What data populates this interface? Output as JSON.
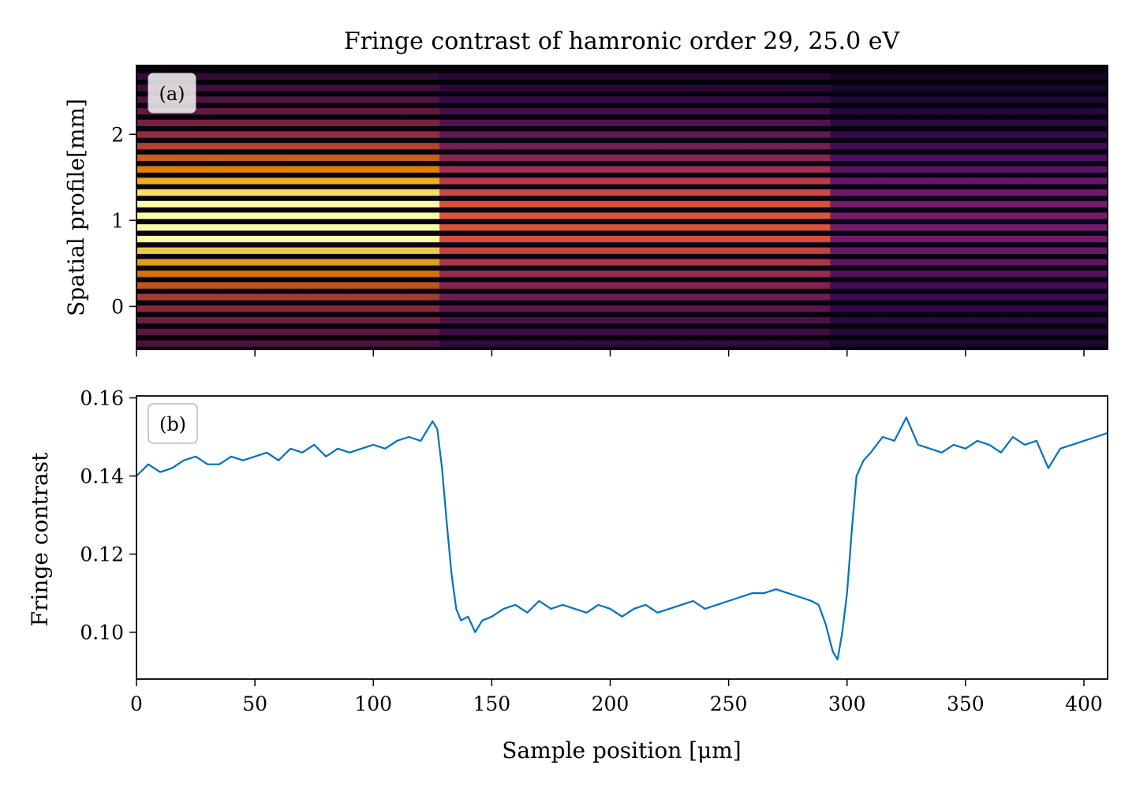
{
  "chart_data": [
    {
      "panel": "(a)",
      "type": "heatmap",
      "title": "Fringe contrast of hamronic order 29, 25.0 eV",
      "ylabel": "Spatial profile[mm]",
      "xlabel": "",
      "xlim": [
        0,
        410
      ],
      "ylim": [
        -0.5,
        2.8
      ],
      "yticks": [
        0,
        1,
        2
      ],
      "xticks": [
        0,
        50,
        100,
        150,
        200,
        250,
        300,
        350,
        400
      ],
      "colormap": "inferno",
      "fringe_period_mm": 0.135,
      "regions": [
        {
          "x_range": [
            0,
            128
          ],
          "relative_intensity": 0.95
        },
        {
          "x_range": [
            128,
            293
          ],
          "relative_intensity": 0.62
        },
        {
          "x_range": [
            293,
            410
          ],
          "relative_intensity": 0.32
        }
      ],
      "beam_center_mm": 1.0,
      "grid": false,
      "legend": "none"
    },
    {
      "panel": "(b)",
      "type": "line",
      "xlabel": "Sample position [μm]",
      "ylabel": "Fringe contrast",
      "xlim": [
        0,
        410
      ],
      "ylim": [
        0.088,
        0.1605
      ],
      "yticks": [
        0.1,
        0.12,
        0.14,
        0.16
      ],
      "ytick_labels": [
        "0.10",
        "0.12",
        "0.14",
        "0.16"
      ],
      "xticks": [
        0,
        50,
        100,
        150,
        200,
        250,
        300,
        350,
        400
      ],
      "color": "#0072bd",
      "grid": false,
      "legend": "none",
      "series": [
        {
          "x": [
            0,
            5,
            10,
            15,
            20,
            25,
            30,
            35,
            40,
            45,
            50,
            55,
            60,
            65,
            70,
            75,
            80,
            85,
            90,
            95,
            100,
            105,
            110,
            115,
            120,
            125,
            127,
            129,
            131,
            133,
            135,
            137,
            140,
            143,
            146,
            150,
            155,
            160,
            165,
            170,
            175,
            180,
            185,
            190,
            195,
            200,
            205,
            210,
            215,
            220,
            225,
            230,
            235,
            240,
            245,
            250,
            255,
            260,
            265,
            270,
            275,
            280,
            285,
            288,
            291,
            294,
            296,
            298,
            300,
            302,
            304,
            307,
            310,
            315,
            320,
            325,
            330,
            335,
            340,
            345,
            350,
            355,
            360,
            365,
            370,
            375,
            380,
            385,
            390,
            395,
            400,
            405,
            410
          ],
          "y": [
            0.14,
            0.143,
            0.141,
            0.142,
            0.144,
            0.145,
            0.143,
            0.143,
            0.145,
            0.144,
            0.145,
            0.146,
            0.144,
            0.147,
            0.146,
            0.148,
            0.145,
            0.147,
            0.146,
            0.147,
            0.148,
            0.147,
            0.149,
            0.15,
            0.149,
            0.154,
            0.152,
            0.142,
            0.128,
            0.115,
            0.106,
            0.103,
            0.104,
            0.1,
            0.103,
            0.104,
            0.106,
            0.107,
            0.105,
            0.108,
            0.106,
            0.107,
            0.106,
            0.105,
            0.107,
            0.106,
            0.104,
            0.106,
            0.107,
            0.105,
            0.106,
            0.107,
            0.108,
            0.106,
            0.107,
            0.108,
            0.109,
            0.11,
            0.11,
            0.111,
            0.11,
            0.109,
            0.108,
            0.107,
            0.102,
            0.095,
            0.093,
            0.1,
            0.11,
            0.126,
            0.14,
            0.144,
            0.146,
            0.15,
            0.149,
            0.155,
            0.148,
            0.147,
            0.146,
            0.148,
            0.147,
            0.149,
            0.148,
            0.146,
            0.15,
            0.148,
            0.149,
            0.142,
            0.147,
            0.148,
            0.149,
            0.15,
            0.151
          ]
        }
      ]
    }
  ],
  "panel_tags": {
    "a": "(a)",
    "b": "(b)"
  }
}
